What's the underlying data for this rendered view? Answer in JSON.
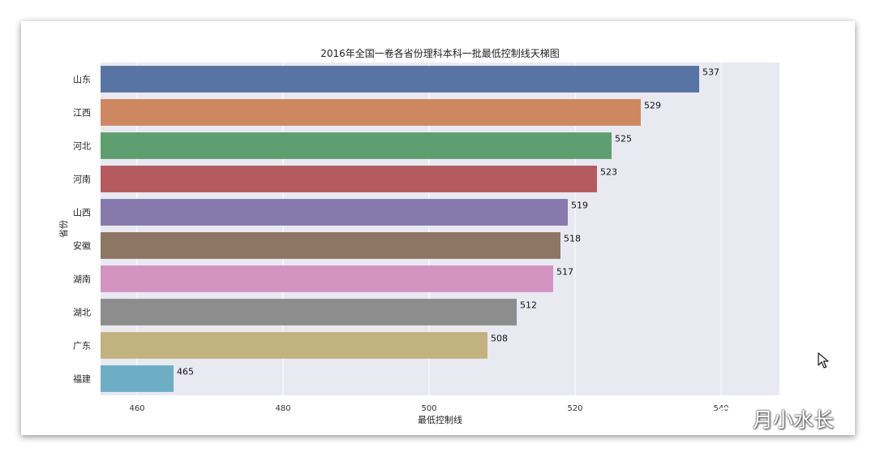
{
  "chart_data": {
    "type": "bar",
    "orientation": "horizontal",
    "title": "2016年全国一卷各省份理科本科一批最低控制线天梯图",
    "xlabel": "最低控制线",
    "ylabel": "省份",
    "categories": [
      "山东",
      "江西",
      "河北",
      "河南",
      "山西",
      "安徽",
      "湖南",
      "湖北",
      "广东",
      "福建"
    ],
    "values": [
      537,
      529,
      525,
      523,
      519,
      518,
      517,
      512,
      508,
      465
    ],
    "data_labels": [
      "537",
      "529",
      "525",
      "523",
      "519",
      "518",
      "517",
      "512",
      "508",
      "465"
    ],
    "xlim": [
      455,
      548
    ],
    "xticks": [
      460,
      480,
      500,
      520,
      540
    ],
    "xtick_labels": [
      "460",
      "480",
      "500",
      "520",
      "540"
    ],
    "colors": [
      "#5874a4",
      "#cd8862",
      "#5e9f6f",
      "#b45b60",
      "#8679ab",
      "#8d7663",
      "#d293c0",
      "#8d8d8d",
      "#c2b27f",
      "#6daec4"
    ],
    "background": "#e9e9f2",
    "grid": true
  },
  "watermark": {
    "text": "月小水长",
    "icon": "wechat-icon"
  },
  "cursor": {
    "icon": "mouse-pointer-icon"
  }
}
